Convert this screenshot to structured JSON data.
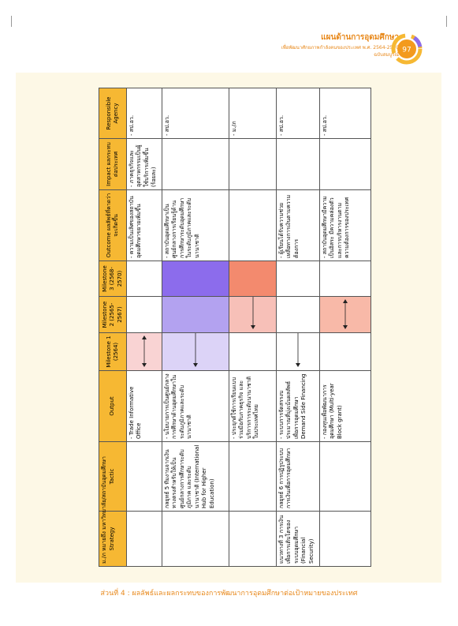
{
  "header": {
    "title": "แผนด้านการอุดมศึกษา",
    "subtitle": "เพื่อพัฒนาศักยภาพกำลังคนของประเทศ พ.ศ. 2564-2570",
    "edition": "ฉบับสมบูรณ์",
    "page": "97"
  },
  "table": {
    "columns": [
      "Strategy",
      "Tactic",
      "Output",
      "Milestone 1 (2564)",
      "Milestone 2 (2565-2567)",
      "Milestone 3 (2568-2570)",
      "Outcome ผลลัพธ์ที่คาดว่าจะเกิดขึ้น",
      "Impact ผลกระทบต่อประเทศ",
      "Responsible Agency"
    ],
    "rows": [
      {
        "output": "- Trade Informative Office",
        "milestones": [
          "#f9d3d3",
          null,
          null
        ],
        "outcome": "- ความเป็นเลิศของสถาบันอุดมศึกษาขยายเพิ่มขึ้น",
        "impact": "- ภาคธุรกิจและอุตสาหกรรมเป็นผู้ใช้บริการเพิ่มขึ้น (ร้อยละ)",
        "agency": "- สป.อว."
      },
      {
        "tactic": "กลยุทธ์ 5 ทีมงานจากเงินทางตรงสำหรับให้เป็นศูนย์กลางการศึกษาระดับภูมิภาค และระดับนานาชาติ (International Hub for Higher Education)",
        "output": "- นโยบายการเป็นศูนย์กลางการศึกษาด้านอุดมศึกษาในระดับภูมิภาคและระดับนานาชาติ",
        "milestones": [
          "#dcd3f7",
          "#b3a2f0",
          "#8c6cec"
        ],
        "outcome": "- สถาบันอุดมศึกษาเป็นศูนย์กลางการเรียนรู้ด้านการศึกษาระดับอุดมศึกษาในระดับภูมิภาคและระดับนานาชาติ",
        "agency": "- สป.อว."
      },
      {
        "output": "- ประยุกต์ใช้การเรียนแบบร่วมมือกับภาคธุรกิจ และบริการการระดับนานาชาติในประเทศไทย",
        "milestones": [
          null,
          "#f7c0b8",
          "#f38a6e"
        ],
        "agency": "- ม./ภ"
      },
      {
        "strategy": "แนวทางที่ 3 การเงินเพื่อการเติบโตของระบบอุดมศึกษา (Financial Security)",
        "tactic": "กลยุทธ์ 6 การปฏิรูประบบการเงินเพื่อการอุดมศึกษา",
        "output": "- ระบบการจัดสรรงบประมาณที่มุ่งเน้นผลลัพธ์เพื่อการอุดมศึกษา Demand Side Financing",
        "milestones": [
          null,
          null,
          null
        ],
        "outcome": "- ผู้เรียนได้รับความช่วยเหลือทางการเงินตามความต้องการ",
        "agency": "- สป.อว."
      },
      {
        "output": "- กองทุนเพื่อพัฒนาการอุดมศึกษา (Multi-year Block grant)",
        "milestones": [
          null,
          "#f8b9a8",
          null
        ],
        "outcome": "- สถาบันอุดมศึกษามีความเป็นอิสระ มีความคล่องตัวและการบริหารงานตามความต้องการของประเทศ",
        "agency": "- สป.อว."
      }
    ]
  },
  "note": "ม./ภ หมายถึง มหาวิทยาลัย/สถาบันอุดมศึกษา",
  "footer": "ส่วนที่ 4 : ผลลัพธ์และผลกระทบของการพัฒนาการอุดมศึกษาต่อเป้าหมายของประเทศ"
}
